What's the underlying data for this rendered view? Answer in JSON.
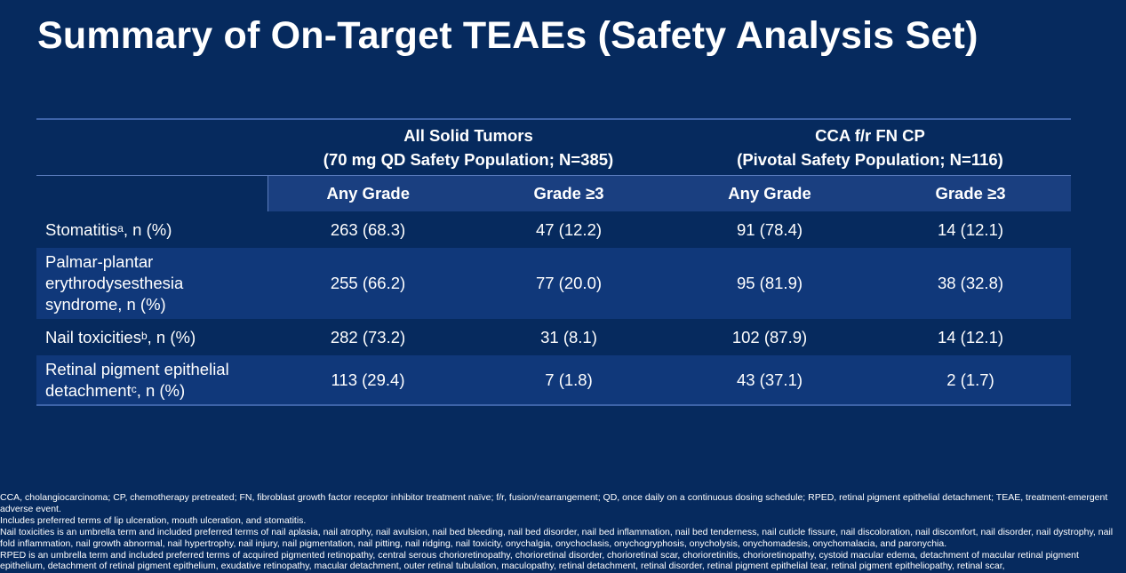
{
  "title": "Summary of On-Target TEAEs (Safety Analysis Set)",
  "table": {
    "group1": {
      "line1": "All Solid Tumors",
      "line2": "(70 mg QD Safety Population; N=385)"
    },
    "group2": {
      "line1": "CCA f/r FN CP",
      "line2": "(Pivotal Safety Population; N=116)"
    },
    "subheaders": [
      "Any Grade",
      "Grade ≥3",
      "Any Grade",
      "Grade ≥3"
    ],
    "rows": [
      {
        "label": "Stomatitis",
        "sup": "a",
        "label_tail": ", n (%)",
        "values": [
          "263 (68.3)",
          "47 (12.2)",
          "91 (78.4)",
          "14 (12.1)"
        ]
      },
      {
        "label": "Palmar-plantar erythrodysesthesia syndrome, n (%)",
        "sup": "",
        "label_tail": "",
        "values": [
          "255 (66.2)",
          "77 (20.0)",
          "95 (81.9)",
          "38 (32.8)"
        ]
      },
      {
        "label": "Nail toxicities",
        "sup": "b",
        "label_tail": ", n (%)",
        "values": [
          "282 (73.2)",
          "31 (8.1)",
          "102 (87.9)",
          "14 (12.1)"
        ]
      },
      {
        "label": "Retinal pigment epithelial detachment",
        "sup": "c",
        "label_tail": ", n (%)",
        "values": [
          "113 (29.4)",
          "7 (1.8)",
          "43 (37.1)",
          "2 (1.7)"
        ]
      }
    ]
  },
  "footnotes": {
    "abbrev": "CCA, cholangiocarcinoma; CP, chemotherapy pretreated; FN, fibroblast growth factor receptor inhibitor treatment naïve; f/r, fusion/rearrangement; QD, once daily on a continuous dosing schedule; RPED, retinal pigment epithelial detachment; TEAE, treatment-emergent adverse event.",
    "a": "Includes preferred terms of lip ulceration, mouth ulceration, and stomatitis.",
    "b": "Nail toxicities is an umbrella term and included preferred terms of nail aplasia, nail atrophy, nail avulsion, nail bed bleeding, nail bed disorder, nail bed inflammation, nail bed tenderness, nail cuticle fissure, nail discoloration, nail discomfort, nail disorder, nail dystrophy, nail fold inflammation, nail growth abnormal, nail hypertrophy, nail injury, nail pigmentation, nail pitting, nail ridging, nail toxicity, onychalgia, onychoclasis, onychogryphosis, onycholysis, onychomadesis, onychomalacia, and paronychia.",
    "c": "RPED is an umbrella term and included preferred terms of acquired pigmented retinopathy, central serous chorioretinopathy, chorioretinal disorder, chorioretinal scar, chorioretinitis, chorioretinopathy, cystoid macular edema, detachment of macular retinal pigment epithelium, detachment of retinal pigment epithelium, exudative retinopathy, macular detachment, outer retinal tubulation, maculopathy, retinal detachment, retinal disorder, retinal pigment epithelial tear, retinal pigment epitheliopathy, retinal scar,"
  }
}
